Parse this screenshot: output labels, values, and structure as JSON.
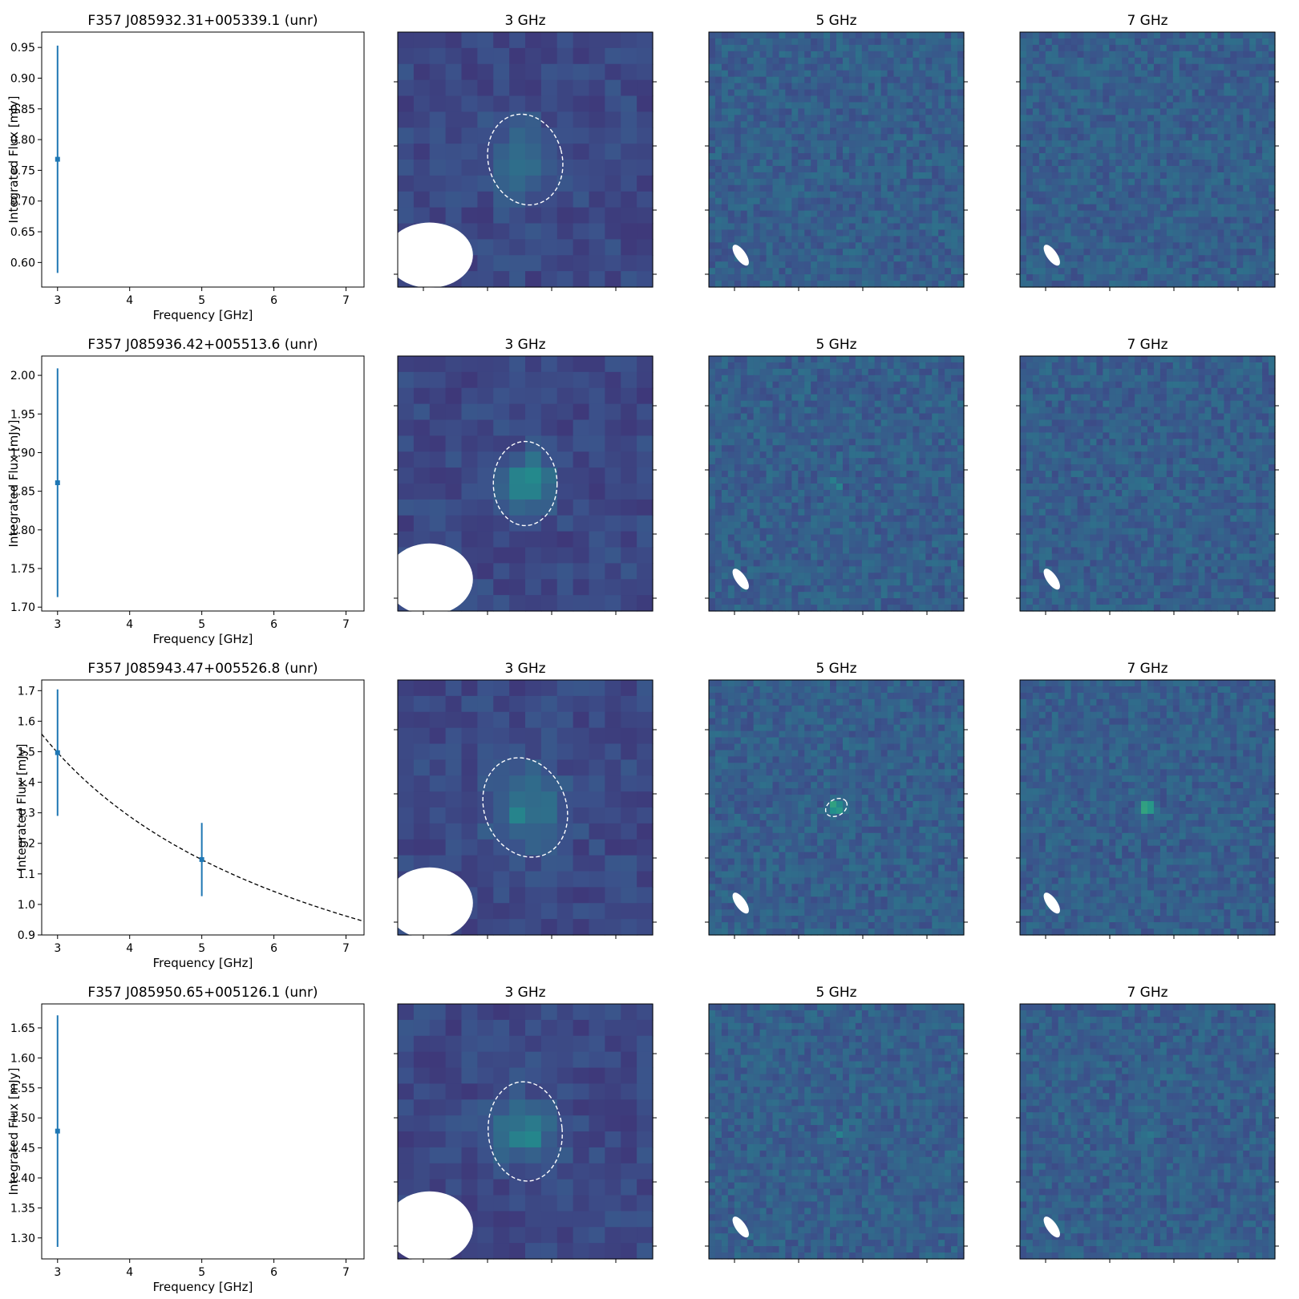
{
  "figure": {
    "image_titles": [
      "3 GHz",
      "5 GHz",
      "7 GHz"
    ],
    "xlabel": "Frequency [GHz]",
    "ylabel": "Integrated Flux [mJy]",
    "colormap": "viridis",
    "colors": {
      "data": "#1f77b4",
      "fit": "#000000",
      "beam": "#ffffff",
      "contour": "#ffffff"
    }
  },
  "chart_data": [
    {
      "type": "scatter",
      "title": "F357 J085932.31+005339.1 (unr)",
      "xlabel": "Frequency [GHz]",
      "ylabel": "Integrated Flux [mJy]",
      "xlim": [
        2.78,
        7.25
      ],
      "ylim": [
        0.56,
        0.975
      ],
      "xticks": [
        3,
        4,
        5,
        6,
        7
      ],
      "yticks": [
        0.6,
        0.65,
        0.7,
        0.75,
        0.8,
        0.85,
        0.9,
        0.95
      ],
      "ytick_decimals": 2,
      "points": [
        {
          "x": 3,
          "y": 0.768,
          "err": 0.185
        }
      ],
      "fit": null,
      "images": [
        {
          "freq": "3 GHz",
          "grid": 16,
          "seed": 11,
          "base": 0.22,
          "noise": 0.05,
          "source": 0.16,
          "src_sigma": 1.5,
          "src_pos": [
            0.5,
            0.5
          ],
          "contour": true,
          "contour_rx": 0.145,
          "contour_ry": 0.18,
          "contour_rot": -15,
          "beam": [
            0.128,
            0.17,
            0
          ]
        },
        {
          "freq": "5 GHz",
          "grid": 40,
          "seed": 12,
          "base": 0.3,
          "noise": 0.07,
          "source": 0.0,
          "src_sigma": 0.7,
          "src_pos": [
            0.5,
            0.5
          ],
          "contour": false,
          "beam": [
            0.048,
            0.02,
            -35
          ]
        },
        {
          "freq": "7 GHz",
          "grid": 40,
          "seed": 13,
          "base": 0.3,
          "noise": 0.07,
          "source": 0.0,
          "src_sigma": 0.7,
          "src_pos": [
            0.5,
            0.5
          ],
          "contour": false,
          "beam": [
            0.048,
            0.02,
            -35
          ]
        }
      ]
    },
    {
      "type": "scatter",
      "title": "F357 J085936.42+005513.6 (unr)",
      "xlabel": "Frequency [GHz]",
      "ylabel": "Integrated Flux [mJy]",
      "xlim": [
        2.78,
        7.25
      ],
      "ylim": [
        1.695,
        2.025
      ],
      "xticks": [
        3,
        4,
        5,
        6,
        7
      ],
      "yticks": [
        1.7,
        1.75,
        1.8,
        1.85,
        1.9,
        1.95,
        2.0
      ],
      "ytick_decimals": 2,
      "points": [
        {
          "x": 3,
          "y": 1.861,
          "err": 0.148
        }
      ],
      "fit": null,
      "images": [
        {
          "freq": "3 GHz",
          "grid": 16,
          "seed": 21,
          "base": 0.22,
          "noise": 0.05,
          "source": 0.3,
          "src_sigma": 1.1,
          "src_pos": [
            0.5,
            0.5
          ],
          "contour": true,
          "contour_rx": 0.125,
          "contour_ry": 0.165,
          "contour_rot": 0,
          "beam": [
            0.14,
            0.17,
            0
          ]
        },
        {
          "freq": "5 GHz",
          "grid": 40,
          "seed": 22,
          "base": 0.3,
          "noise": 0.07,
          "source": 0.3,
          "src_sigma": 0.45,
          "src_pos": [
            0.5,
            0.5
          ],
          "contour": false,
          "beam": [
            0.048,
            0.02,
            -35
          ]
        },
        {
          "freq": "7 GHz",
          "grid": 40,
          "seed": 23,
          "base": 0.3,
          "noise": 0.07,
          "source": 0.12,
          "src_sigma": 0.45,
          "src_pos": [
            0.5,
            0.5
          ],
          "contour": false,
          "beam": [
            0.048,
            0.02,
            -35
          ]
        }
      ]
    },
    {
      "type": "scatter",
      "title": "F357 J085943.47+005526.8 (unr)",
      "xlabel": "Frequency [GHz]",
      "ylabel": "Integrated Flux [mJy]",
      "xlim": [
        2.78,
        7.25
      ],
      "ylim": [
        0.9,
        1.735
      ],
      "xticks": [
        3,
        4,
        5,
        6,
        7
      ],
      "yticks": [
        0.9,
        1.0,
        1.1,
        1.2,
        1.3,
        1.4,
        1.5,
        1.6,
        1.7
      ],
      "ytick_decimals": 1,
      "points": [
        {
          "x": 3,
          "y": 1.497,
          "err": 0.207
        },
        {
          "x": 5,
          "y": 1.147,
          "err": 0.12
        }
      ],
      "fit": {
        "type": "power-law",
        "x0": 3,
        "y0": 1.497,
        "index": -0.522
      },
      "images": [
        {
          "freq": "3 GHz",
          "grid": 16,
          "seed": 31,
          "base": 0.22,
          "noise": 0.05,
          "source": 0.2,
          "src_sigma": 1.5,
          "src_pos": [
            0.5,
            0.5
          ],
          "contour": true,
          "contour_rx": 0.16,
          "contour_ry": 0.2,
          "contour_rot": -22,
          "beam": [
            0.14,
            0.17,
            0
          ]
        },
        {
          "freq": "5 GHz",
          "grid": 40,
          "seed": 32,
          "base": 0.3,
          "noise": 0.07,
          "source": 0.65,
          "src_sigma": 0.5,
          "src_pos": [
            0.5,
            0.5
          ],
          "contour": true,
          "contour_rx": 0.045,
          "contour_ry": 0.032,
          "contour_rot": -30,
          "beam": [
            0.048,
            0.02,
            -35
          ]
        },
        {
          "freq": "7 GHz",
          "grid": 40,
          "seed": 33,
          "base": 0.3,
          "noise": 0.07,
          "source": 0.65,
          "src_sigma": 0.5,
          "src_pos": [
            0.5,
            0.5
          ],
          "contour": false,
          "beam": [
            0.048,
            0.02,
            -35
          ]
        }
      ]
    },
    {
      "type": "scatter",
      "title": "F357 J085950.65+005126.1 (unr)",
      "xlabel": "Frequency [GHz]",
      "ylabel": "Integrated Flux [mJy]",
      "xlim": [
        2.78,
        7.25
      ],
      "ylim": [
        1.265,
        1.69
      ],
      "xticks": [
        3,
        4,
        5,
        6,
        7
      ],
      "yticks": [
        1.3,
        1.35,
        1.4,
        1.45,
        1.5,
        1.55,
        1.6,
        1.65
      ],
      "ytick_decimals": 2,
      "points": [
        {
          "x": 3,
          "y": 1.478,
          "err": 0.193
        }
      ],
      "fit": null,
      "images": [
        {
          "freq": "3 GHz",
          "grid": 16,
          "seed": 41,
          "base": 0.22,
          "noise": 0.05,
          "source": 0.22,
          "src_sigma": 1.3,
          "src_pos": [
            0.5,
            0.5
          ],
          "contour": true,
          "contour_rx": 0.145,
          "contour_ry": 0.195,
          "contour_rot": -5,
          "beam": [
            0.14,
            0.17,
            0
          ]
        },
        {
          "freq": "5 GHz",
          "grid": 40,
          "seed": 42,
          "base": 0.3,
          "noise": 0.07,
          "source": 0.25,
          "src_sigma": 0.45,
          "src_pos": [
            0.5,
            0.5
          ],
          "contour": false,
          "beam": [
            0.048,
            0.02,
            -35
          ]
        },
        {
          "freq": "7 GHz",
          "grid": 40,
          "seed": 43,
          "base": 0.3,
          "noise": 0.07,
          "source": 0.12,
          "src_sigma": 0.45,
          "src_pos": [
            0.5,
            0.5
          ],
          "contour": false,
          "beam": [
            0.048,
            0.02,
            -35
          ]
        }
      ]
    }
  ]
}
